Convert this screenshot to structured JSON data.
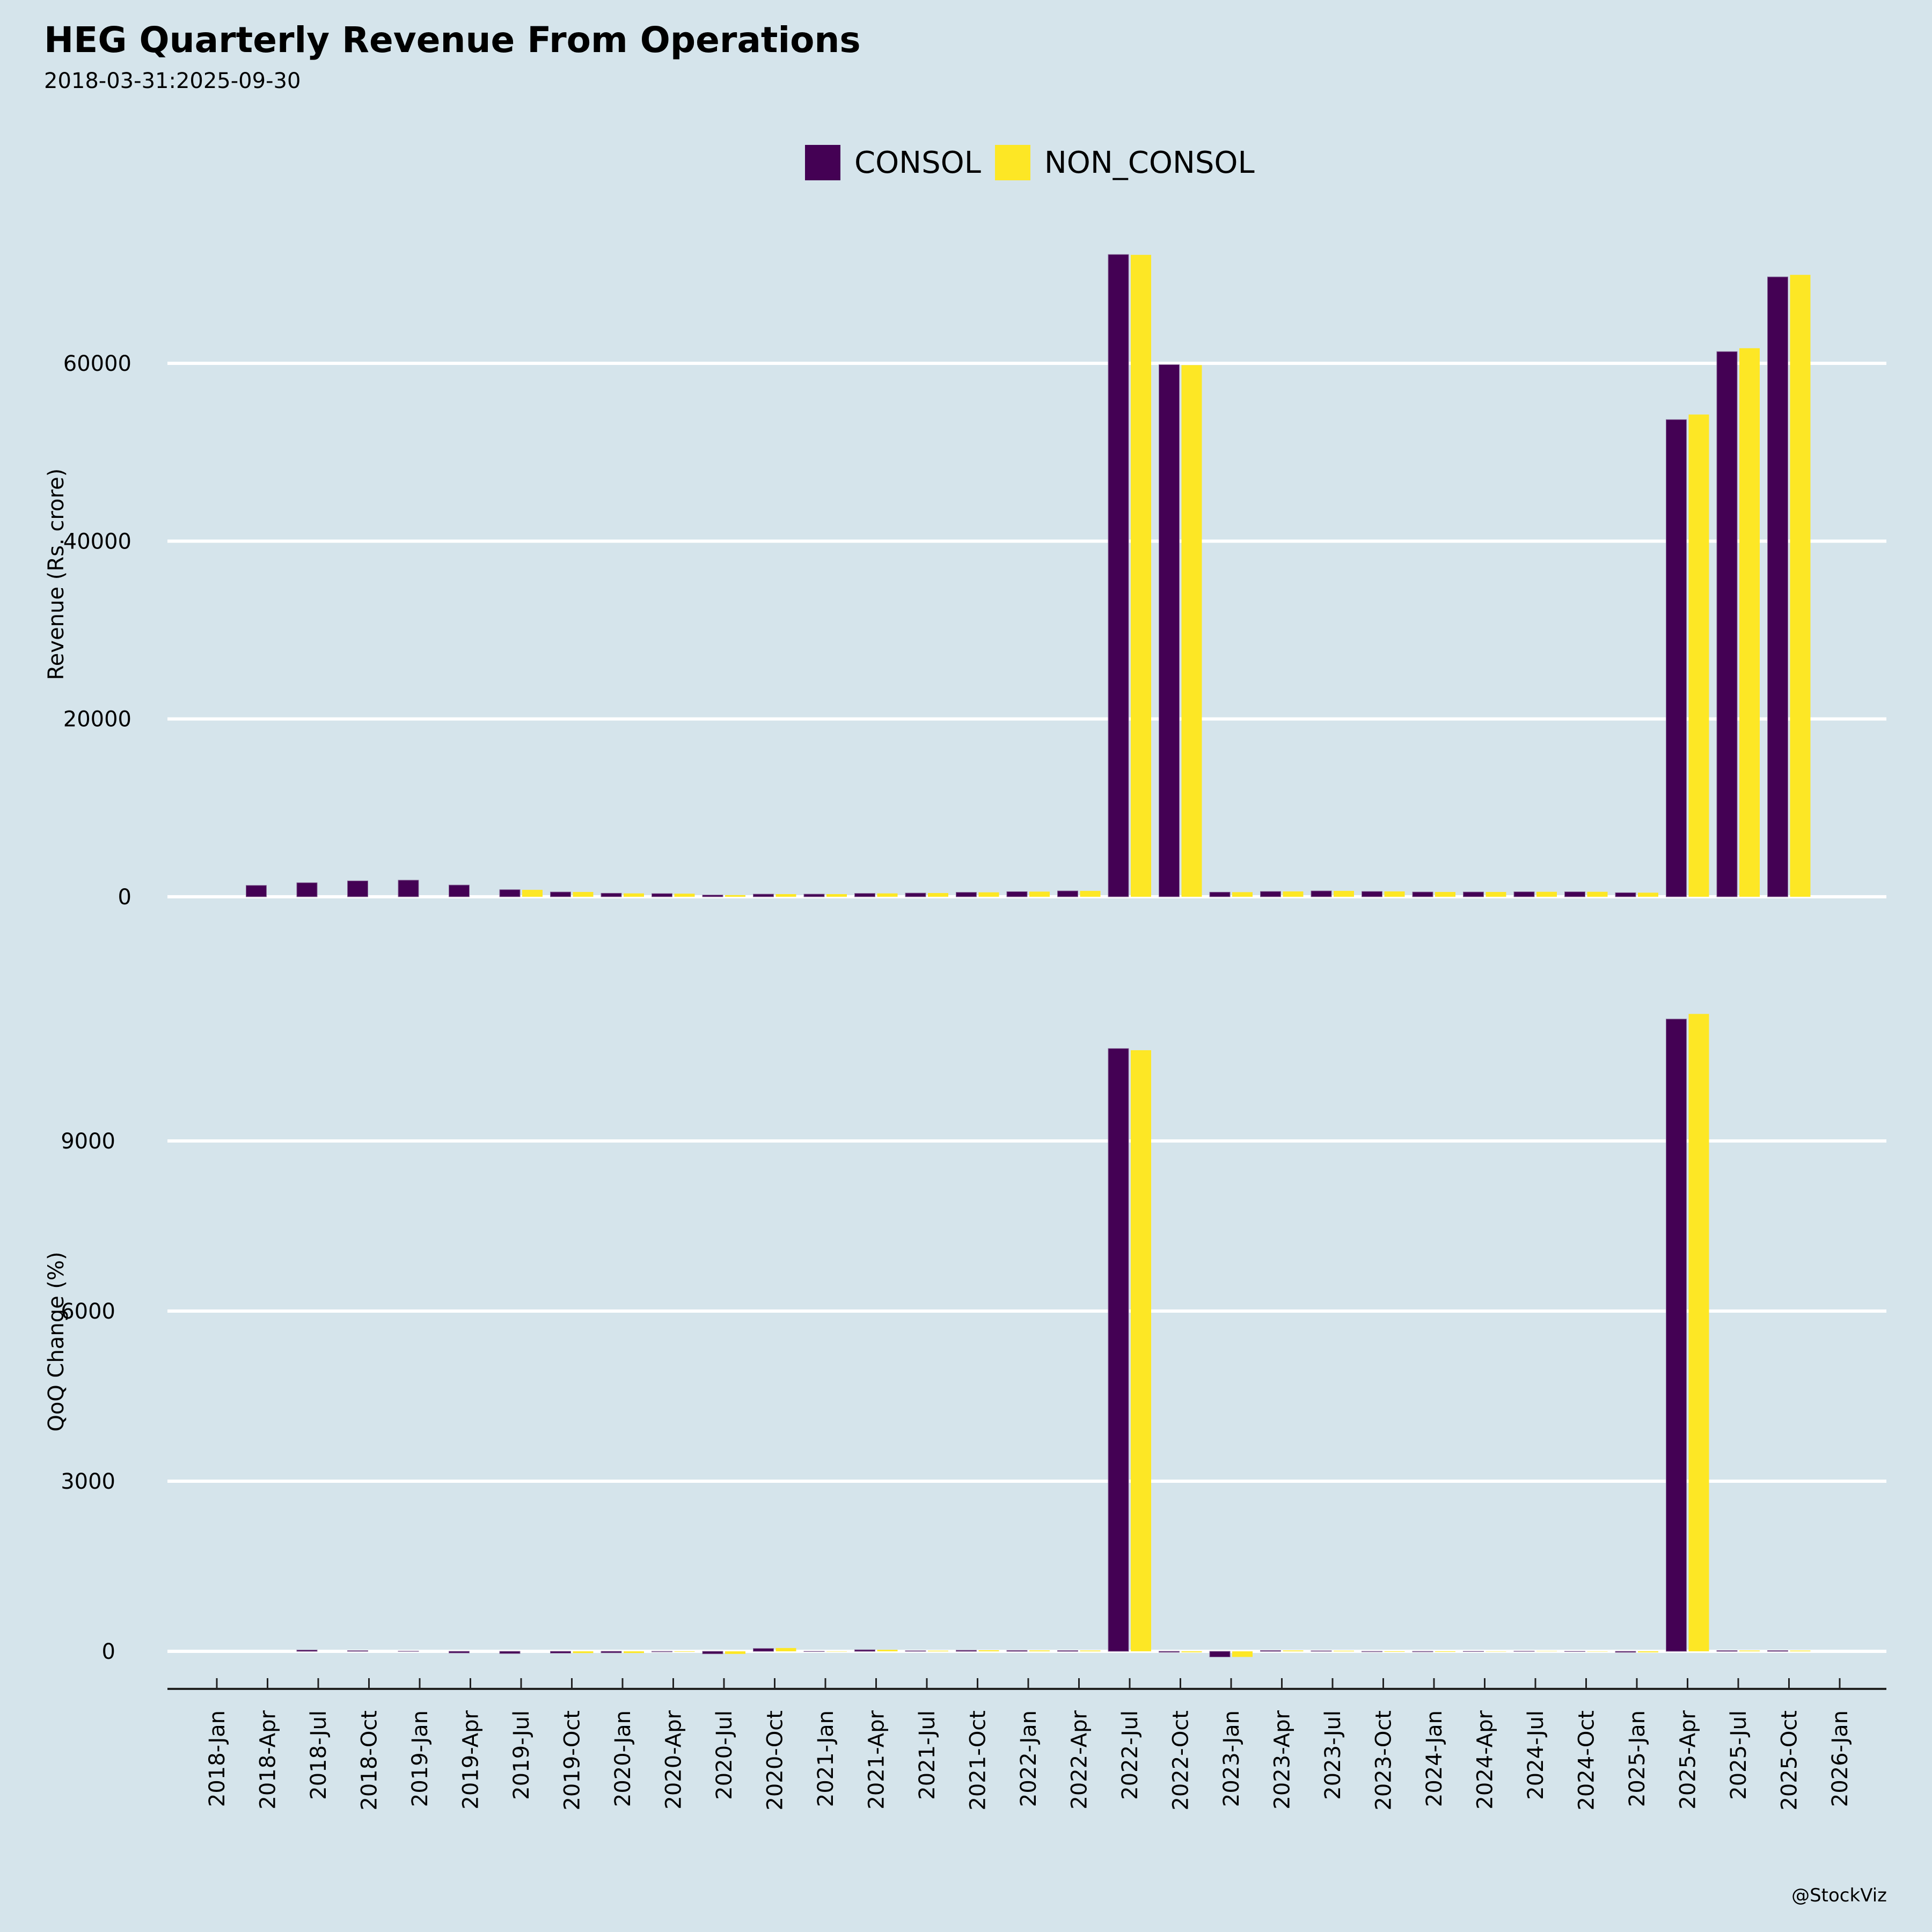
{
  "title": "HEG Quarterly Revenue From Operations",
  "subtitle": "2018-03-31:2025-09-30",
  "credit": "@StockViz",
  "colors": {
    "consol": "#440154",
    "non_consol": "#fde725",
    "background": "#d5e4eb",
    "grid": "#ffffff"
  },
  "legend": [
    {
      "label": "CONSOL",
      "color": "#440154"
    },
    {
      "label": "NON_CONSOL",
      "color": "#fde725"
    }
  ],
  "chart_data": [
    {
      "type": "bar",
      "panel": "top",
      "ylabel": "Revenue (Rs. crore)",
      "ylim": [
        0,
        75000
      ],
      "yticks": [
        0,
        20000,
        40000,
        60000
      ],
      "ytick_labels": [
        "0",
        "20000",
        "40000",
        "60000"
      ],
      "grid": true,
      "legend_position": "top-center",
      "categories": [
        "2018-Apr",
        "2018-Jul",
        "2018-Oct",
        "2019-Jan",
        "2019-Apr",
        "2019-Jul",
        "2019-Oct",
        "2020-Jan",
        "2020-Apr",
        "2020-Jul",
        "2020-Oct",
        "2021-Jan",
        "2021-Apr",
        "2021-Jul",
        "2021-Oct",
        "2022-Jan",
        "2022-Apr",
        "2022-Jul",
        "2022-Oct",
        "2023-Jan",
        "2023-Apr",
        "2023-Jul",
        "2023-Oct",
        "2024-Jan",
        "2024-Apr",
        "2024-Jul",
        "2024-Oct",
        "2025-Jan",
        "2025-Apr",
        "2025-Jul",
        "2025-Oct"
      ],
      "series": [
        {
          "name": "CONSOL",
          "values": [
            1280,
            1580,
            1790,
            1870,
            1320,
            800,
            540,
            400,
            360,
            200,
            300,
            300,
            380,
            420,
            500,
            580,
            660,
            72240,
            59850,
            520,
            600,
            660,
            600,
            540,
            540,
            560,
            560,
            460,
            53670,
            61320,
            69720
          ]
        },
        {
          "name": "NON_CONSOL",
          "values": [
            null,
            null,
            null,
            null,
            null,
            780,
            540,
            380,
            350,
            190,
            300,
            300,
            380,
            420,
            500,
            580,
            660,
            72200,
            59800,
            520,
            600,
            660,
            600,
            540,
            540,
            560,
            560,
            460,
            54240,
            61700,
            69950
          ]
        }
      ]
    },
    {
      "type": "bar",
      "panel": "bottom",
      "ylabel": "QoQ Change (%)",
      "ylim": [
        -200,
        11800
      ],
      "yticks": [
        0,
        3000,
        6000,
        9000
      ],
      "ytick_labels": [
        "0",
        "3000",
        "6000",
        "9000"
      ],
      "grid": true,
      "xtick_labels": [
        "2018-Jan",
        "2018-Apr",
        "2018-Jul",
        "2018-Oct",
        "2019-Jan",
        "2019-Apr",
        "2019-Jul",
        "2019-Oct",
        "2020-Jan",
        "2020-Apr",
        "2020-Jul",
        "2020-Oct",
        "2021-Jan",
        "2021-Apr",
        "2021-Jul",
        "2021-Oct",
        "2022-Jan",
        "2022-Apr",
        "2022-Jul",
        "2022-Oct",
        "2023-Jan",
        "2023-Apr",
        "2023-Jul",
        "2023-Oct",
        "2024-Jan",
        "2024-Apr",
        "2024-Jul",
        "2024-Oct",
        "2025-Jan",
        "2025-Apr",
        "2025-Jul",
        "2025-Oct",
        "2026-Jan"
      ],
      "categories": [
        "2018-Apr",
        "2018-Jul",
        "2018-Oct",
        "2019-Jan",
        "2019-Apr",
        "2019-Jul",
        "2019-Oct",
        "2020-Jan",
        "2020-Apr",
        "2020-Jul",
        "2020-Oct",
        "2021-Jan",
        "2021-Apr",
        "2021-Jul",
        "2021-Oct",
        "2022-Jan",
        "2022-Apr",
        "2022-Jul",
        "2022-Oct",
        "2023-Jan",
        "2023-Apr",
        "2023-Jul",
        "2023-Oct",
        "2024-Jan",
        "2024-Apr",
        "2024-Jul",
        "2024-Oct",
        "2025-Jan",
        "2025-Apr",
        "2025-Jul",
        "2025-Oct"
      ],
      "series": [
        {
          "name": "CONSOL",
          "values": [
            null,
            23,
            13,
            4,
            -29,
            -39,
            -32,
            -26,
            -10,
            -44,
            50,
            0,
            27,
            11,
            19,
            16,
            14,
            10630,
            -17,
            -99,
            15,
            10,
            -9,
            -10,
            0,
            4,
            0,
            -18,
            11150,
            14,
            14
          ]
        },
        {
          "name": "NON_CONSOL",
          "values": [
            null,
            null,
            null,
            null,
            null,
            null,
            -31,
            -30,
            -8,
            -46,
            58,
            0,
            27,
            11,
            19,
            16,
            14,
            10600,
            -17,
            -99,
            15,
            10,
            -9,
            -10,
            0,
            4,
            0,
            -18,
            11240,
            14,
            13
          ]
        }
      ]
    }
  ]
}
